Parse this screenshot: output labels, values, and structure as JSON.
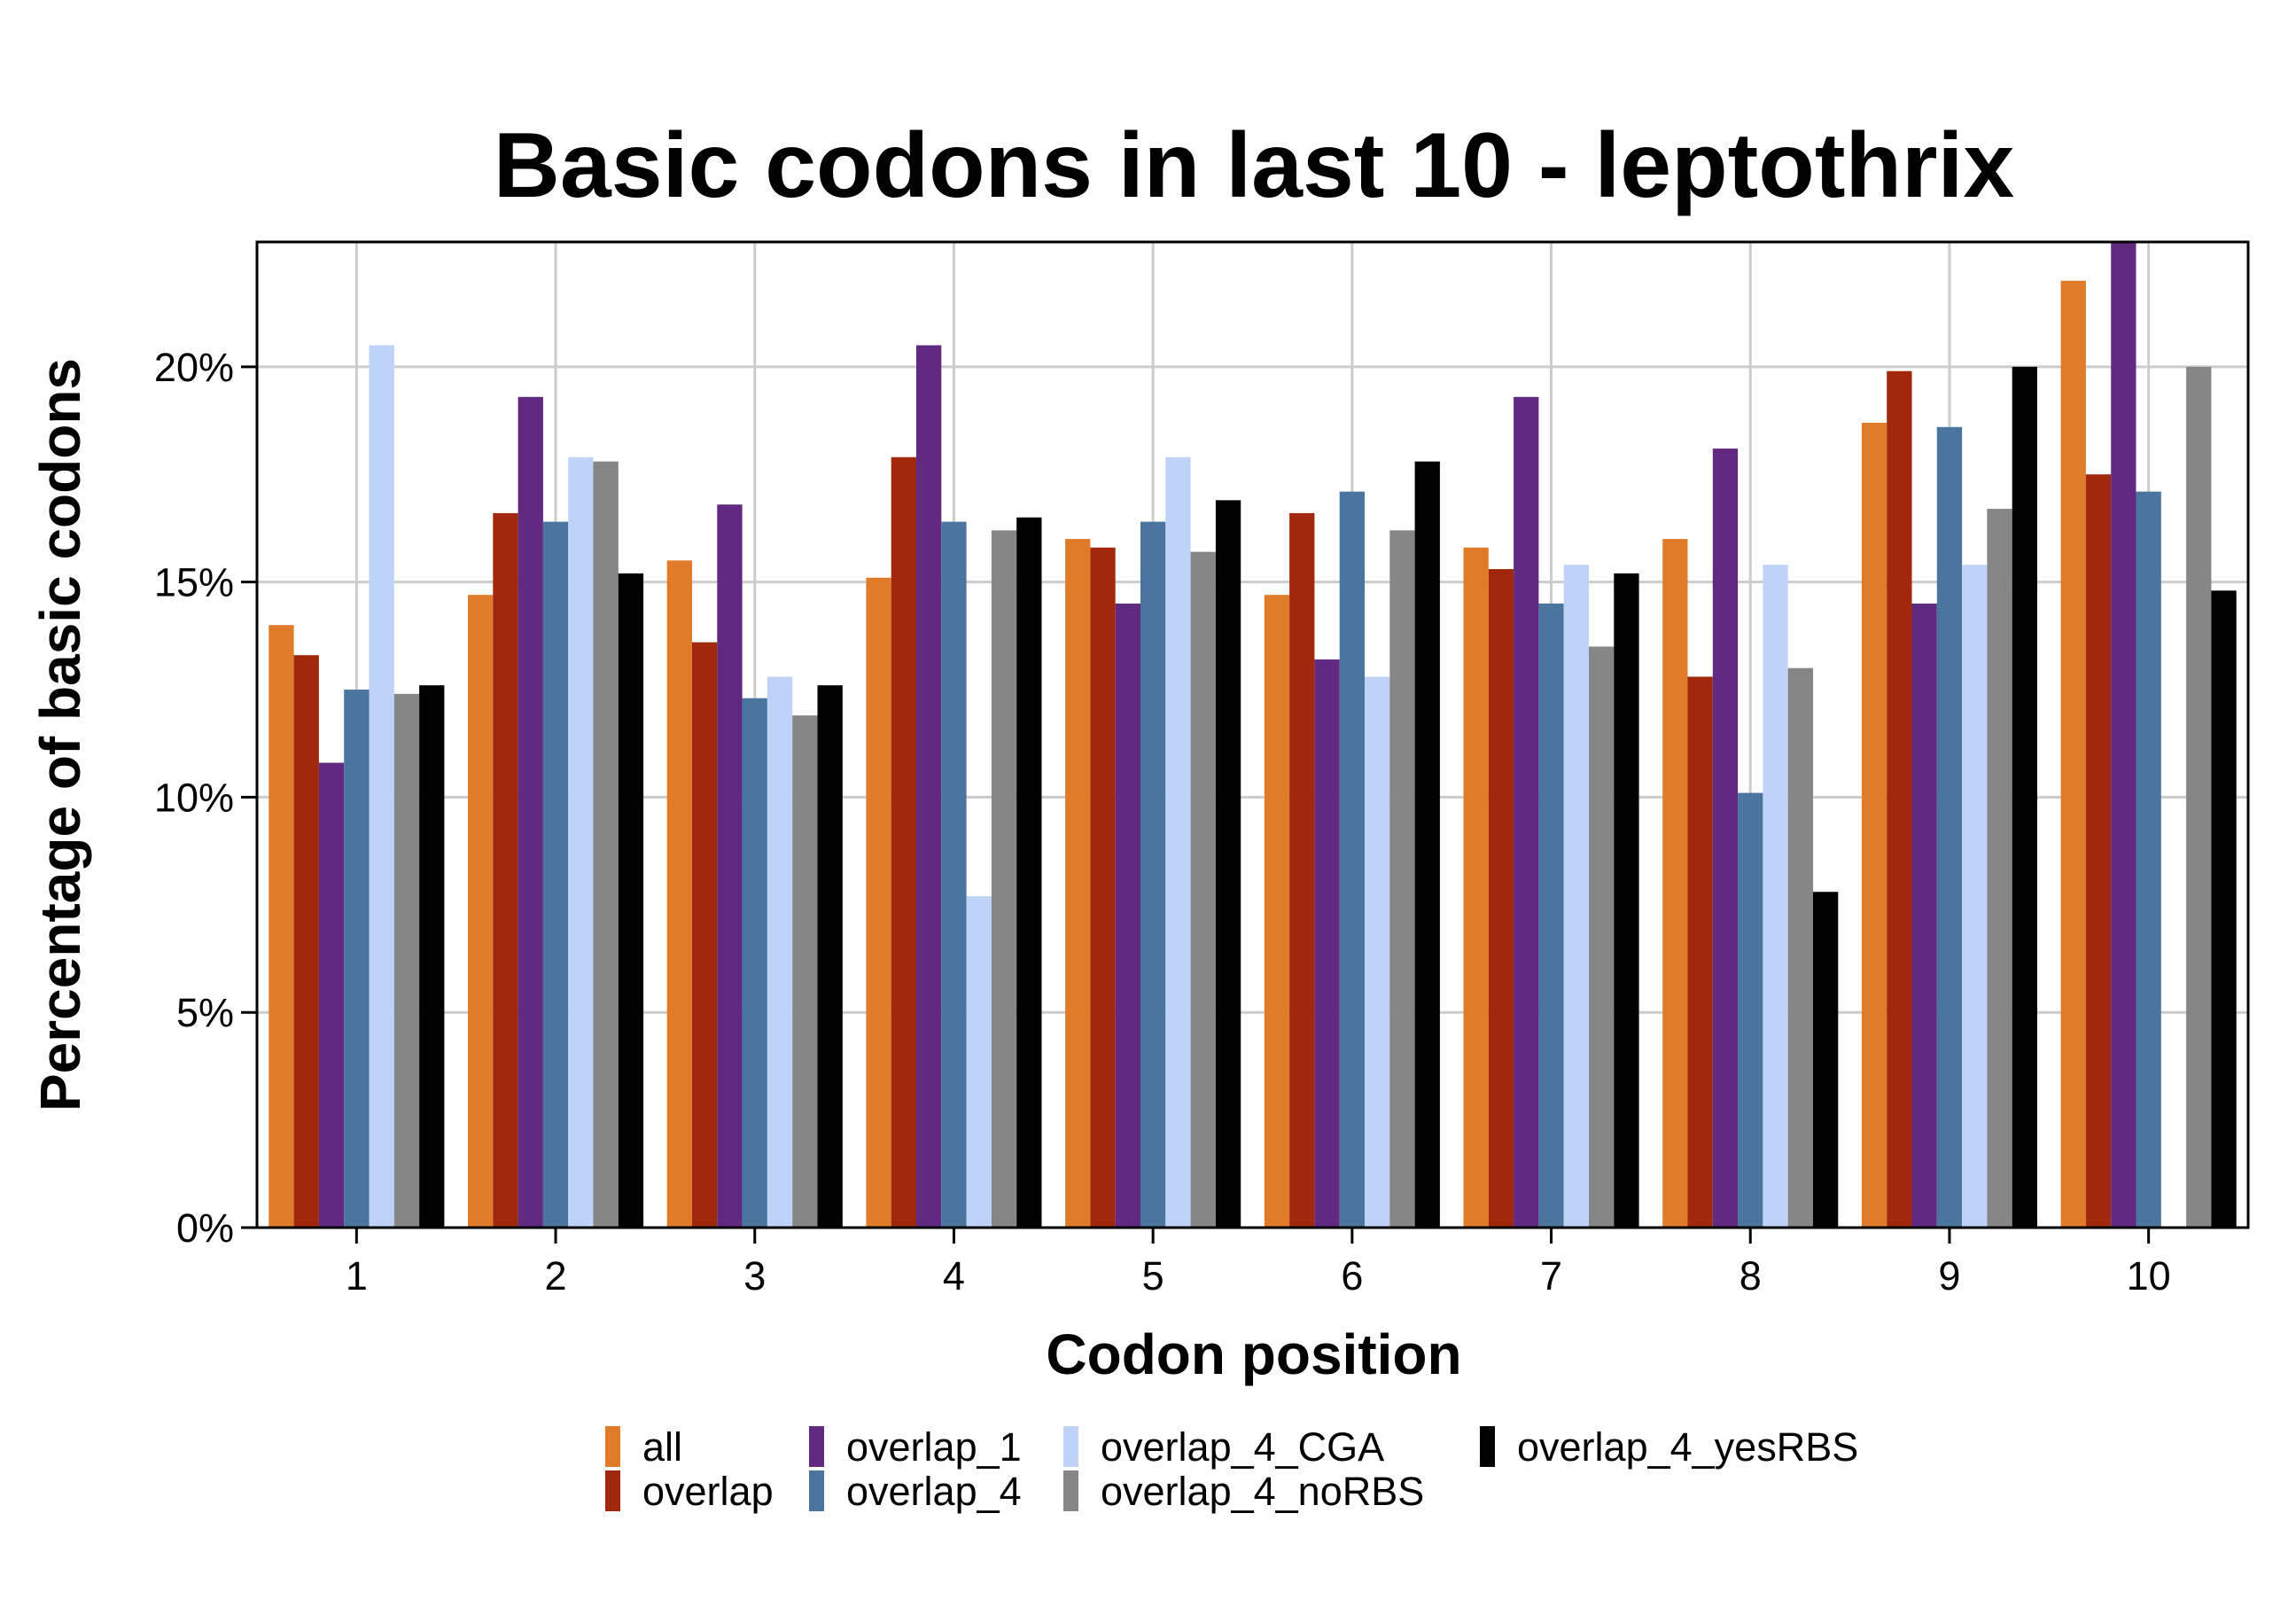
{
  "chart_data": {
    "type": "bar",
    "title": "Basic codons in last 10 - leptothrix",
    "xlabel": "Codon position",
    "ylabel": "Percentage of basic codons",
    "categories": [
      "1",
      "2",
      "3",
      "4",
      "5",
      "6",
      "7",
      "8",
      "9",
      "10"
    ],
    "ylim": [
      0,
      22.9
    ],
    "yticks": [
      0,
      5,
      10,
      15,
      20
    ],
    "ytick_labels": [
      "0%",
      "5%",
      "10%",
      "15%",
      "20%"
    ],
    "grid": true,
    "legend_position": "bottom",
    "series": [
      {
        "name": "all",
        "color": "#e07b2a",
        "values": [
          14.0,
          14.7,
          15.5,
          15.1,
          16.0,
          14.7,
          15.8,
          16.0,
          18.7,
          22.0
        ]
      },
      {
        "name": "overlap",
        "color": "#a2280d",
        "values": [
          13.3,
          16.6,
          13.6,
          17.9,
          15.8,
          16.6,
          15.3,
          12.8,
          19.9,
          17.5
        ]
      },
      {
        "name": "overlap_1",
        "color": "#612a80",
        "values": [
          10.8,
          19.3,
          16.8,
          20.5,
          14.5,
          13.2,
          19.3,
          18.1,
          14.5,
          22.9
        ]
      },
      {
        "name": "overlap_4",
        "color": "#4a759e",
        "values": [
          12.5,
          16.4,
          12.3,
          16.4,
          16.4,
          17.1,
          14.5,
          10.1,
          18.6,
          17.1
        ]
      },
      {
        "name": "overlap_4_CGA",
        "color": "#bfd3f9",
        "values": [
          20.5,
          17.9,
          12.8,
          7.7,
          17.9,
          12.8,
          15.4,
          15.4,
          15.4,
          0.0
        ]
      },
      {
        "name": "overlap_4_noRBS",
        "color": "#868686",
        "values": [
          12.4,
          17.8,
          11.9,
          16.2,
          15.7,
          16.2,
          13.5,
          13.0,
          16.7,
          20.0
        ]
      },
      {
        "name": "overlap_4_yesRBS",
        "color": "#000000",
        "values": [
          12.6,
          15.2,
          12.6,
          16.5,
          16.9,
          17.8,
          15.2,
          7.8,
          20.0,
          14.8
        ]
      }
    ]
  }
}
